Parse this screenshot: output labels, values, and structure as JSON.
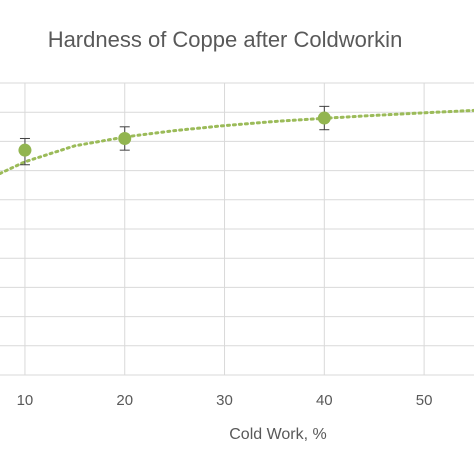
{
  "chart_data": {
    "type": "scatter",
    "title": "Hardness of Coppe after Coldworkin",
    "xlabel": "Cold Work, %",
    "ylabel": "",
    "x_ticks": [
      10,
      20,
      30,
      40,
      50
    ],
    "xlim": [
      7.5,
      55.0
    ],
    "ylim": [
      0.0,
      1.0
    ],
    "grid": true,
    "legend": "none",
    "series": [
      {
        "points": [
          {
            "x": 10,
            "y": 0.77,
            "err_low": 0.05,
            "err_high": 0.04
          },
          {
            "x": 20,
            "y": 0.81,
            "err_low": 0.04,
            "err_high": 0.04
          },
          {
            "x": 40,
            "y": 0.88,
            "err_low": 0.04,
            "err_high": 0.04
          }
        ],
        "color": "#92B550"
      }
    ],
    "trendline": {
      "style": "dotted",
      "color": "#9BBB59",
      "x": [
        7.5,
        10,
        15,
        20,
        25,
        30,
        35,
        40,
        45,
        50,
        55
      ],
      "y": [
        0.69,
        0.73,
        0.785,
        0.815,
        0.837,
        0.854,
        0.868,
        0.879,
        0.889,
        0.898,
        0.906
      ]
    }
  }
}
